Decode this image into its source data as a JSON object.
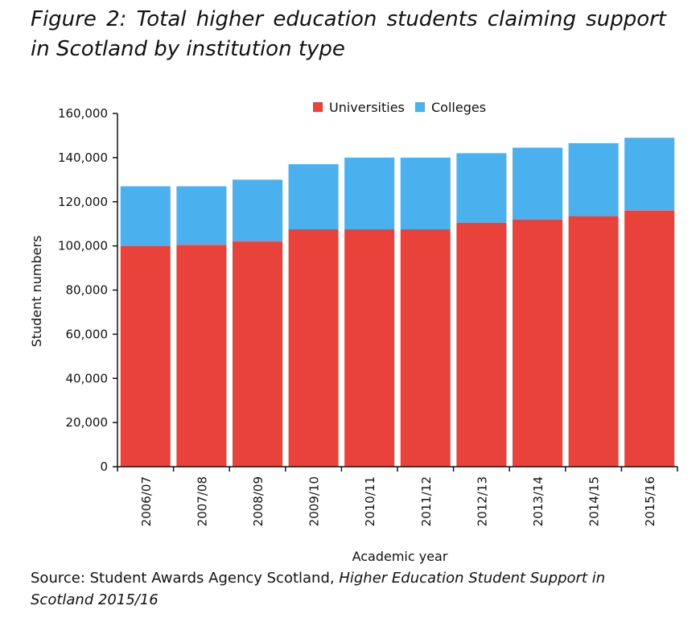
{
  "figure": {
    "title": "Figure 2: Total higher education students claiming support in Scotland by institution type",
    "source_prefix": "Source: Student Awards Agency Scotland,",
    "source_title": "Higher Education Student Support in Scotland 2015/16"
  },
  "chart_data": {
    "type": "bar",
    "stacked": true,
    "title": "",
    "xlabel": "Academic year",
    "ylabel": "Student numbers",
    "ylim": [
      0,
      160000
    ],
    "yticks": [
      0,
      20000,
      40000,
      60000,
      80000,
      100000,
      120000,
      140000,
      160000
    ],
    "ytick_labels": [
      "0",
      "20,000",
      "40,000",
      "60,000",
      "80,000",
      "100,000",
      "120,000",
      "140,000",
      "160,000"
    ],
    "categories": [
      "2006/07",
      "2007/08",
      "2008/09",
      "2009/10",
      "2010/11",
      "2011/12",
      "2012/13",
      "2013/14",
      "2014/15",
      "2015/16"
    ],
    "series": [
      {
        "name": "Universities",
        "color": "#e8423a",
        "values": [
          100000,
          100500,
          102000,
          107500,
          107500,
          107500,
          110500,
          112000,
          113500,
          116000
        ]
      },
      {
        "name": "Colleges",
        "color": "#4ab0ee",
        "values": [
          27000,
          26500,
          28000,
          29500,
          32500,
          32500,
          31500,
          32500,
          33000,
          33000
        ]
      }
    ],
    "grid": false,
    "legend_position": "top-center"
  }
}
